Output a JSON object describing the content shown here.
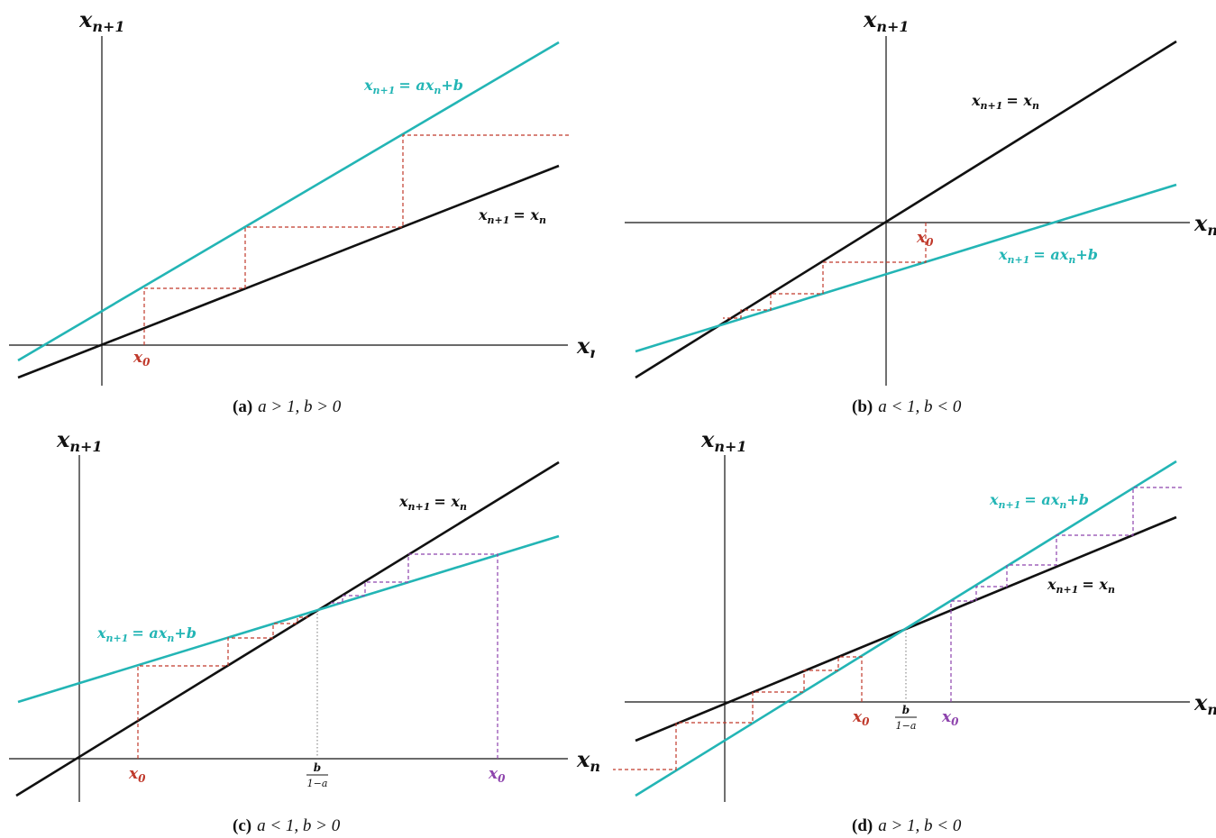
{
  "colors": {
    "axis": "#111111",
    "identity": "#111111",
    "map": "#23b5b5",
    "cobweb_a": "#c0392b",
    "cobweb_b": "#8e44ad",
    "fixed": "#777777"
  },
  "labels": {
    "y_axis_base": "x",
    "y_axis_sub": "n+1",
    "x_axis_base": "x",
    "x_axis_sub": "n",
    "identity_eq": "= x",
    "identity_sub": "n",
    "map_eq_mid": "= ax",
    "map_eq_end": "+b",
    "x0_base": "x",
    "x0_sub": "0",
    "fixed_num": "b",
    "fixed_den": "1−a"
  },
  "panels": [
    {
      "tag": "(a)",
      "condition": "a > 1, b > 0"
    },
    {
      "tag": "(b)",
      "condition": "a < 1, b < 0"
    },
    {
      "tag": "(c)",
      "condition": "a < 1, b > 0"
    },
    {
      "tag": "(d)",
      "condition": "a > 1, b < 0"
    }
  ]
}
